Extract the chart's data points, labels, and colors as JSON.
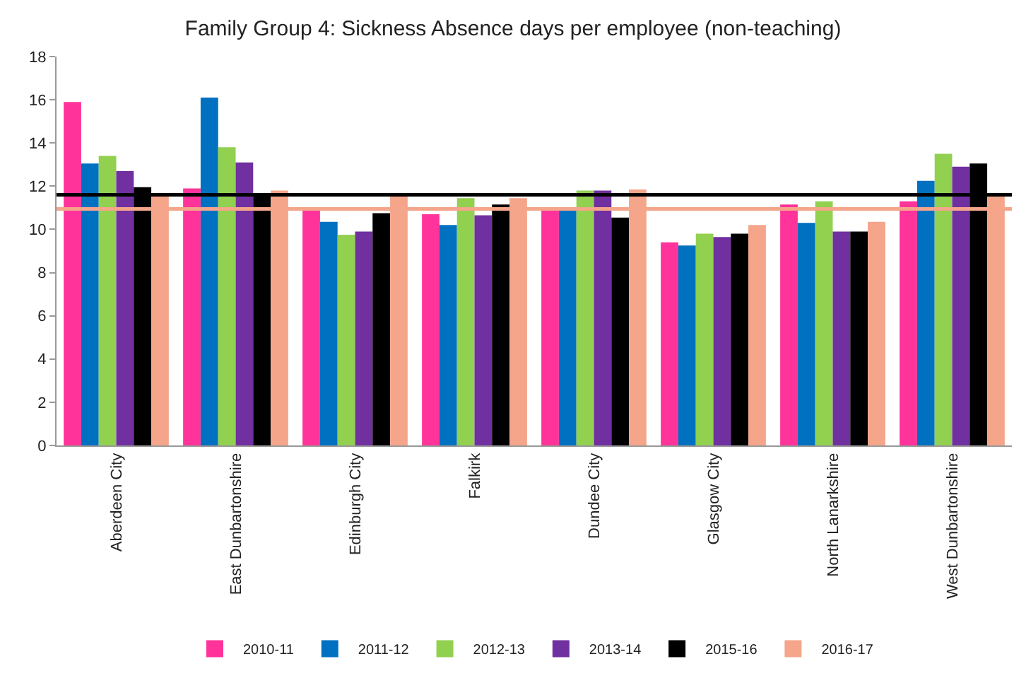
{
  "chart_data": {
    "type": "bar",
    "title": "Family Group 4: Sickness Absence days per employee (non-teaching)",
    "categories": [
      "Aberdeen City",
      "East Dunbartonshire",
      "Edinburgh City",
      "Falkirk",
      "Dundee City",
      "Glasgow City",
      "North Lanarkshire",
      "West Dunbartonshire"
    ],
    "series": [
      {
        "name": "2010-11",
        "color": "#ff3399",
        "values": [
          15.9,
          11.9,
          10.9,
          10.7,
          10.95,
          9.4,
          11.15,
          11.3
        ]
      },
      {
        "name": "2011-12",
        "color": "#0070c0",
        "values": [
          13.05,
          16.1,
          10.35,
          10.2,
          10.95,
          9.25,
          10.3,
          12.25
        ]
      },
      {
        "name": "2012-13",
        "color": "#92d050",
        "values": [
          13.4,
          13.8,
          9.75,
          11.45,
          11.8,
          9.8,
          11.3,
          13.5
        ]
      },
      {
        "name": "2013-14",
        "color": "#7030a0",
        "values": [
          12.7,
          13.1,
          9.9,
          10.65,
          11.8,
          9.65,
          9.9,
          12.9
        ]
      },
      {
        "name": "2015-16",
        "color": "#000000",
        "values": [
          11.95,
          11.6,
          10.75,
          11.15,
          10.55,
          9.8,
          9.9,
          13.05
        ]
      },
      {
        "name": "2016-17",
        "color": "#f4a58a",
        "values": [
          11.6,
          11.8,
          11.6,
          11.45,
          11.85,
          10.2,
          10.35,
          11.6
        ]
      }
    ],
    "ref_lines": [
      {
        "axis": "y",
        "value": 11.6,
        "color": "#000000"
      },
      {
        "axis": "y",
        "value": 10.95,
        "color": "#f4a58a"
      }
    ],
    "ylim": [
      0,
      18
    ],
    "yticks": [
      0,
      2,
      4,
      6,
      8,
      10,
      12,
      14,
      16,
      18
    ],
    "grid": false,
    "legend": "bottom"
  }
}
